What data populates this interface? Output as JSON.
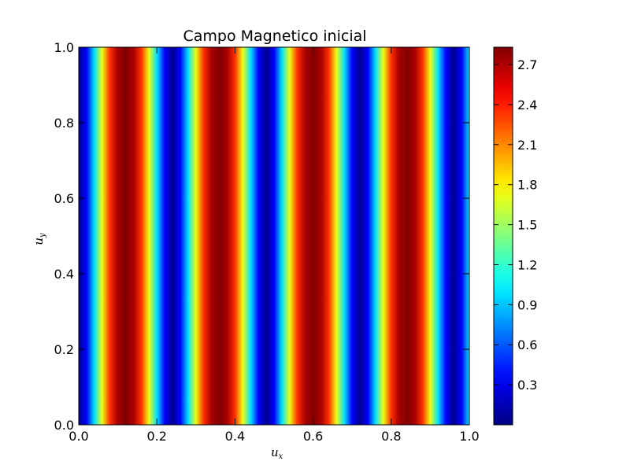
{
  "chart_data": {
    "type": "heatmap",
    "title": "Campo Magnetico inicial",
    "xlabel": "u",
    "xlabel_sub": "x",
    "ylabel": "u",
    "ylabel_sub": "y",
    "xlim": [
      0.0,
      1.0
    ],
    "ylim": [
      0.0,
      1.0
    ],
    "x_ticks": [
      "0.0",
      "0.2",
      "0.4",
      "0.6",
      "0.8",
      "1.0"
    ],
    "y_ticks": [
      "0.0",
      "0.2",
      "0.4",
      "0.6",
      "0.8",
      "1.0"
    ],
    "colormap": "jet",
    "color_range": [
      0.0,
      2.83
    ],
    "colorbar_ticks": [
      "0.3",
      "0.6",
      "0.9",
      "1.2",
      "1.5",
      "1.8",
      "2.1",
      "2.4",
      "2.7"
    ],
    "field": {
      "description_formula": "value depends only on x; stripes vertical",
      "x_samples": [
        0.0,
        0.02,
        0.04,
        0.06,
        0.08,
        0.1,
        0.12,
        0.14,
        0.16,
        0.18,
        0.2,
        0.22,
        0.24,
        0.26,
        0.28,
        0.3,
        0.32,
        0.34,
        0.36,
        0.38,
        0.4,
        0.42,
        0.44,
        0.46,
        0.48,
        0.5,
        0.52,
        0.54,
        0.56,
        0.58,
        0.6,
        0.62,
        0.64,
        0.66,
        0.68,
        0.7,
        0.72,
        0.74,
        0.76,
        0.78,
        0.8,
        0.82,
        0.84,
        0.86,
        0.88,
        0.9,
        0.92,
        0.94,
        0.96,
        0.98,
        1.0
      ],
      "values": [
        0.05,
        0.35,
        0.98,
        1.72,
        2.35,
        2.72,
        2.82,
        2.72,
        2.35,
        1.72,
        0.98,
        0.35,
        0.05,
        0.35,
        0.98,
        1.72,
        2.35,
        2.72,
        2.82,
        2.72,
        2.35,
        1.72,
        0.98,
        0.35,
        0.05,
        0.35,
        0.98,
        1.72,
        2.35,
        2.72,
        2.82,
        2.72,
        2.35,
        1.72,
        0.98,
        0.35,
        0.05,
        0.35,
        0.98,
        1.72,
        2.35,
        2.72,
        2.82,
        2.72,
        2.35,
        1.72,
        0.98,
        0.35,
        0.05,
        0.35,
        0.98
      ]
    }
  }
}
